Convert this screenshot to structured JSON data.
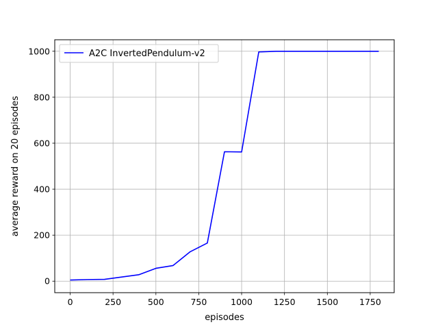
{
  "chart_data": {
    "type": "line",
    "xlabel": "episodes",
    "ylabel": "average reward on 20 episodes",
    "xlim": [
      -90,
      1890
    ],
    "ylim": [
      -50,
      1050
    ],
    "x_ticks": [
      0,
      250,
      500,
      750,
      1000,
      1250,
      1500,
      1750
    ],
    "y_ticks": [
      0,
      200,
      400,
      600,
      800,
      1000
    ],
    "x_tick_labels": [
      "0",
      "250",
      "500",
      "750",
      "1000",
      "1250",
      "1500",
      "1750"
    ],
    "y_tick_labels": [
      "0",
      "200",
      "400",
      "600",
      "800",
      "1000"
    ],
    "grid": true,
    "legend_position": "upper-left",
    "series": [
      {
        "name": "A2C InvertedPendulum-v2",
        "color": "#0000ff",
        "x": [
          0,
          100,
          200,
          300,
          400,
          500,
          600,
          700,
          800,
          900,
          1000,
          1100,
          1200,
          1300,
          1400,
          1500,
          1600,
          1700,
          1800
        ],
        "y": [
          5,
          7,
          8,
          18,
          28,
          56,
          68,
          128,
          166,
          563,
          562,
          997,
          1000,
          1000,
          1000,
          1000,
          1000,
          1000,
          1000
        ]
      }
    ]
  }
}
